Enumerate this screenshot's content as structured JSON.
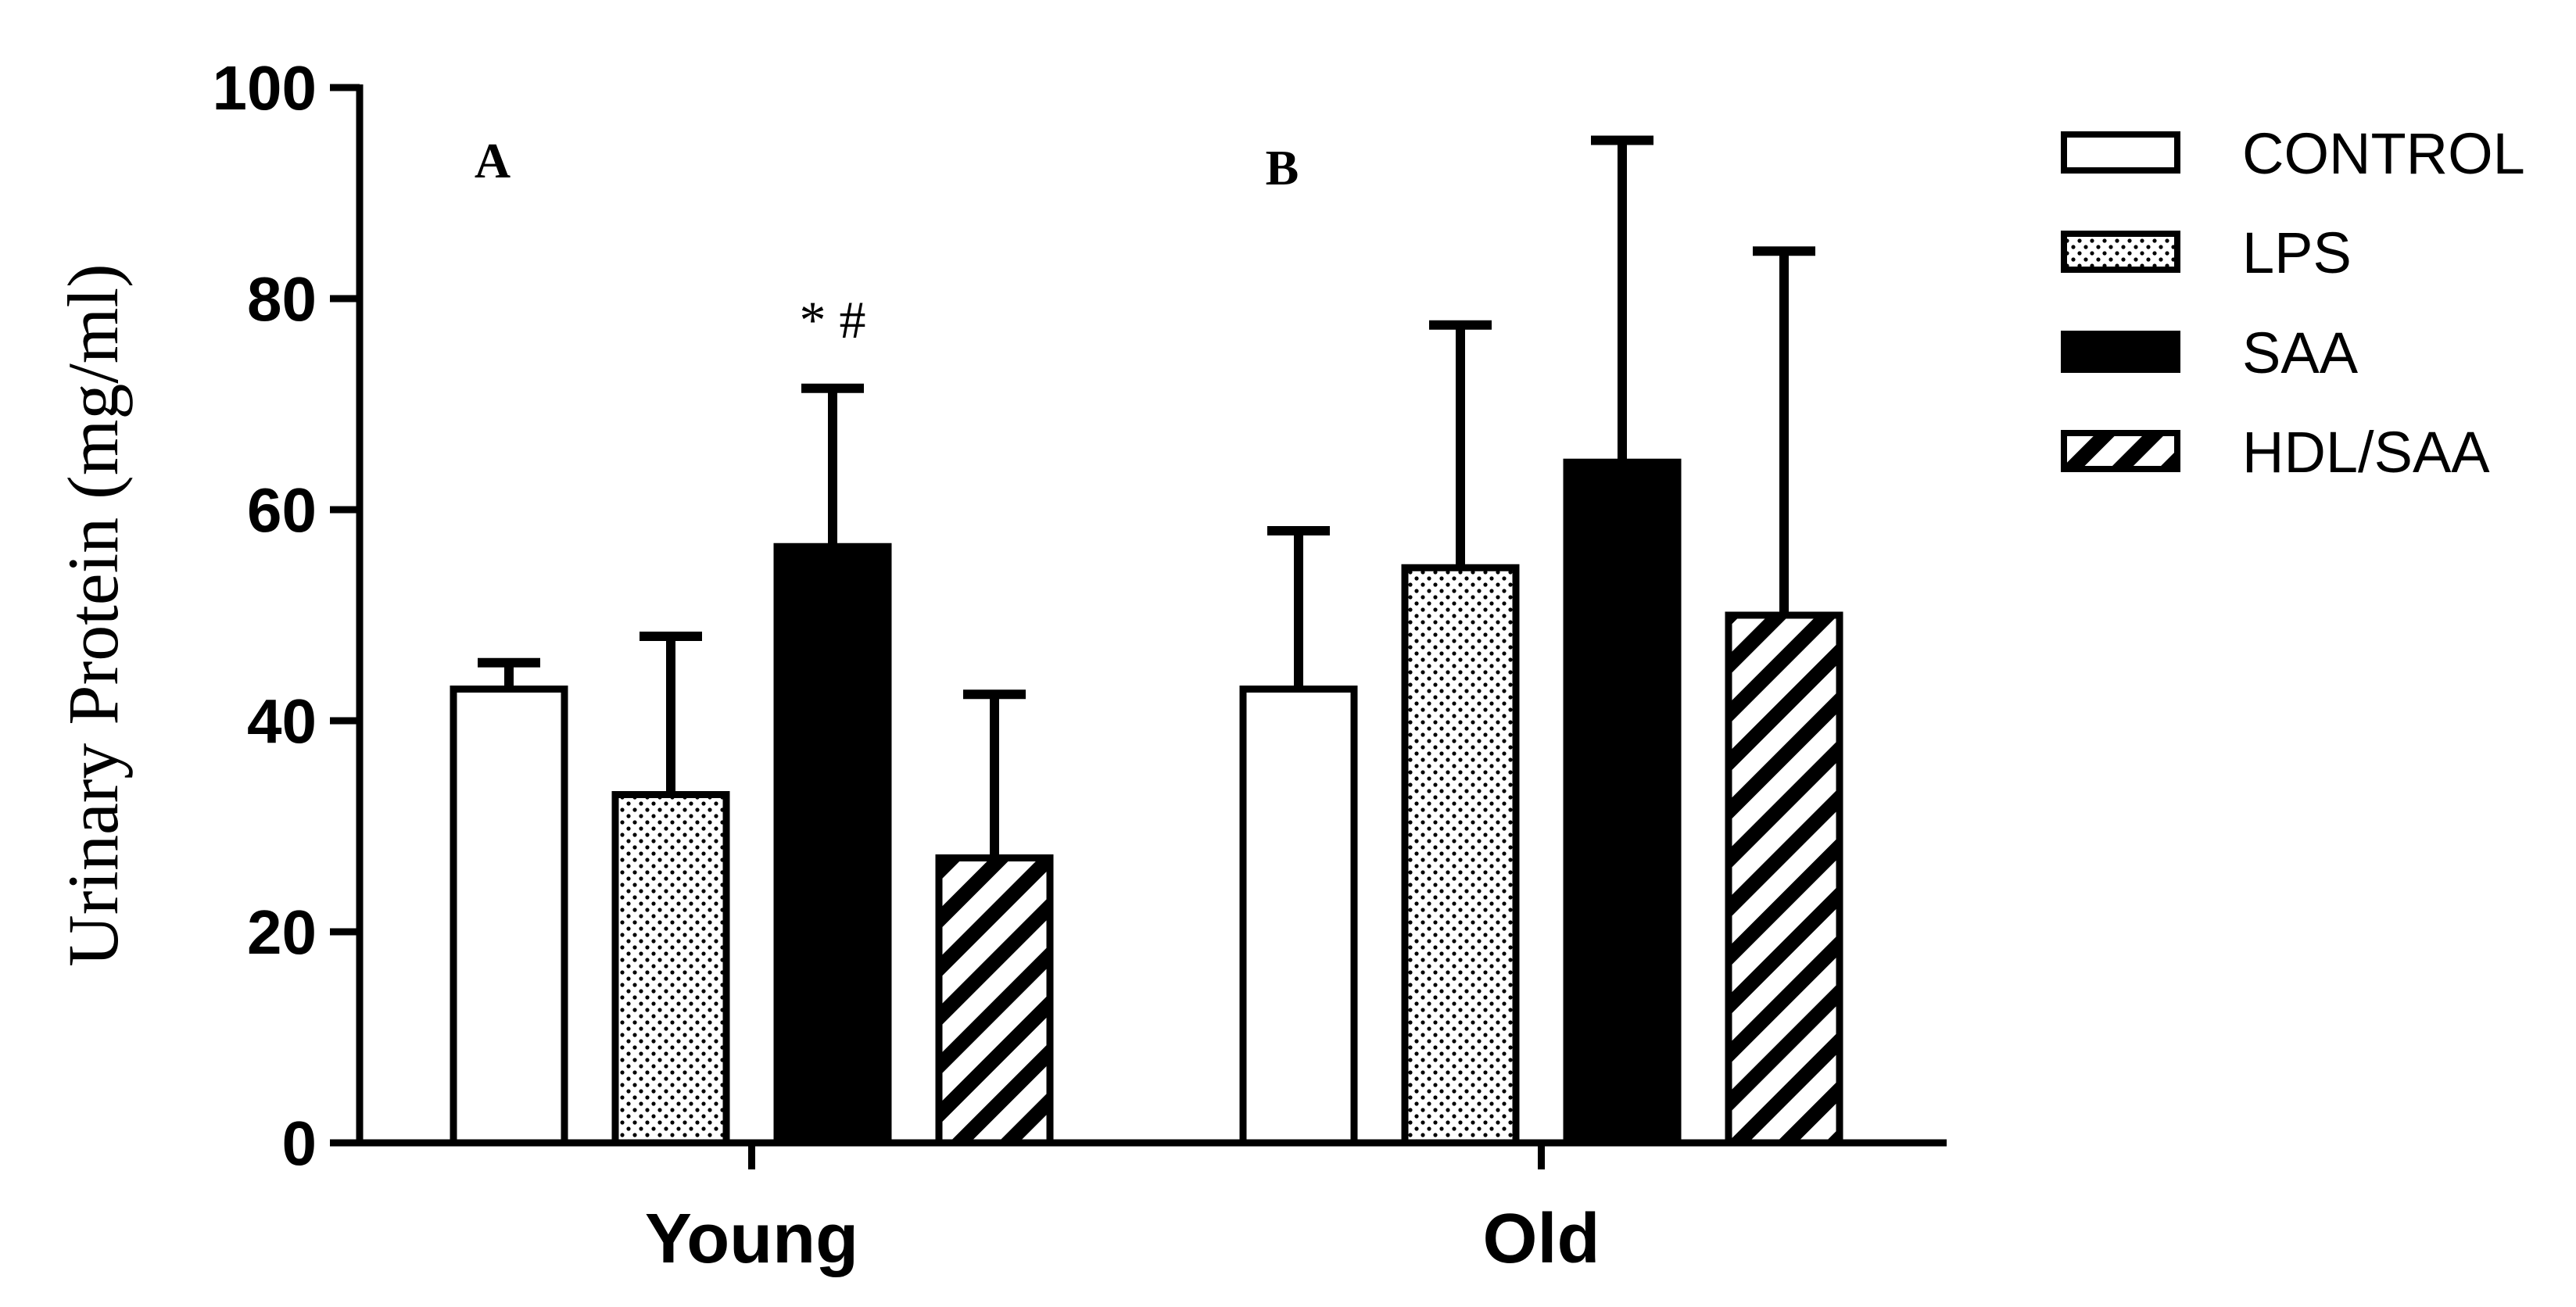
{
  "chart_data": {
    "type": "bar",
    "title": "",
    "xlabel": "",
    "ylabel": "Urinary Protein (mg/ml)",
    "ylim": [
      0,
      100
    ],
    "yticks": [
      "0",
      "20",
      "40",
      "60",
      "80",
      "100"
    ],
    "grid": false,
    "legend_position": "right",
    "categories": [
      "Young",
      "Old"
    ],
    "panel_labels": [
      "A",
      "B"
    ],
    "series": [
      {
        "name": "CONTROL",
        "pattern": "open",
        "values": [
          43,
          43
        ],
        "error_upper": [
          45.5,
          58
        ]
      },
      {
        "name": "LPS",
        "pattern": "dotted",
        "values": [
          33,
          54.5
        ],
        "error_upper": [
          48,
          77.5
        ]
      },
      {
        "name": "SAA",
        "pattern": "solid",
        "values": [
          56.5,
          64.5
        ],
        "error_upper": [
          71.5,
          95
        ]
      },
      {
        "name": "HDL/SAA",
        "pattern": "hatched",
        "values": [
          27,
          50
        ],
        "error_upper": [
          42.5,
          84.5
        ]
      }
    ],
    "annotations": [
      {
        "text": "* #",
        "category": "Young",
        "series": "SAA"
      }
    ]
  },
  "colors": {
    "axis": "#000000",
    "solid_fill": "#000000",
    "open_fill": "#ffffff"
  }
}
